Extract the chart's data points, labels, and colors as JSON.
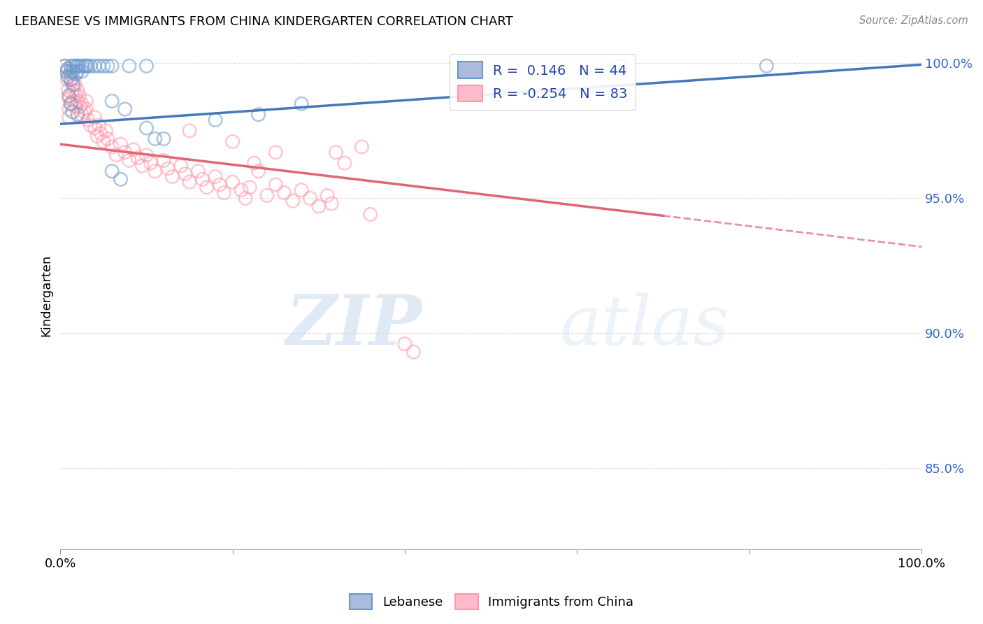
{
  "title": "LEBANESE VS IMMIGRANTS FROM CHINA KINDERGARTEN CORRELATION CHART",
  "source": "Source: ZipAtlas.com",
  "ylabel": "Kindergarten",
  "xlim": [
    0.0,
    1.0
  ],
  "ylim": [
    0.82,
    1.008
  ],
  "ytick_values": [
    0.85,
    0.9,
    0.95,
    1.0
  ],
  "xtick_values": [
    0.0,
    0.2,
    0.4,
    0.6,
    0.8,
    1.0
  ],
  "legend_blue": "R =  0.146   N = 44",
  "legend_pink": "R = -0.254   N = 83",
  "blue_line": {
    "x0": 0.0,
    "y0": 0.9775,
    "x1": 1.0,
    "y1": 0.9995
  },
  "pink_line_solid": {
    "x0": 0.0,
    "y0": 0.97,
    "x1": 0.7,
    "y1": 0.9435
  },
  "pink_line_dash": {
    "x0": 0.7,
    "y0": 0.9435,
    "x1": 1.0,
    "y1": 0.932
  },
  "blue_scatter": [
    [
      0.005,
      0.999
    ],
    [
      0.007,
      0.997
    ],
    [
      0.009,
      0.995
    ],
    [
      0.009,
      0.998
    ],
    [
      0.012,
      0.999
    ],
    [
      0.012,
      0.997
    ],
    [
      0.012,
      0.994
    ],
    [
      0.015,
      0.999
    ],
    [
      0.015,
      0.997
    ],
    [
      0.015,
      0.992
    ],
    [
      0.018,
      0.999
    ],
    [
      0.018,
      0.996
    ],
    [
      0.02,
      0.999
    ],
    [
      0.02,
      0.997
    ],
    [
      0.022,
      0.999
    ],
    [
      0.025,
      0.999
    ],
    [
      0.025,
      0.997
    ],
    [
      0.028,
      0.999
    ],
    [
      0.03,
      0.999
    ],
    [
      0.032,
      0.999
    ],
    [
      0.035,
      0.999
    ],
    [
      0.04,
      0.999
    ],
    [
      0.045,
      0.999
    ],
    [
      0.05,
      0.999
    ],
    [
      0.055,
      0.999
    ],
    [
      0.06,
      0.999
    ],
    [
      0.08,
      0.999
    ],
    [
      0.1,
      0.999
    ],
    [
      0.06,
      0.986
    ],
    [
      0.075,
      0.983
    ],
    [
      0.1,
      0.976
    ],
    [
      0.12,
      0.972
    ],
    [
      0.06,
      0.96
    ],
    [
      0.07,
      0.957
    ],
    [
      0.11,
      0.972
    ],
    [
      0.18,
      0.979
    ],
    [
      0.23,
      0.981
    ],
    [
      0.28,
      0.985
    ],
    [
      0.65,
      0.999
    ],
    [
      0.82,
      0.999
    ],
    [
      0.01,
      0.988
    ],
    [
      0.012,
      0.985
    ],
    [
      0.014,
      0.982
    ],
    [
      0.02,
      0.981
    ]
  ],
  "pink_scatter": [
    [
      0.005,
      0.999
    ],
    [
      0.007,
      0.997
    ],
    [
      0.008,
      0.994
    ],
    [
      0.009,
      0.99
    ],
    [
      0.01,
      0.987
    ],
    [
      0.01,
      0.983
    ],
    [
      0.01,
      0.98
    ],
    [
      0.012,
      0.996
    ],
    [
      0.013,
      0.993
    ],
    [
      0.013,
      0.989
    ],
    [
      0.013,
      0.985
    ],
    [
      0.015,
      0.994
    ],
    [
      0.015,
      0.99
    ],
    [
      0.015,
      0.986
    ],
    [
      0.017,
      0.992
    ],
    [
      0.018,
      0.988
    ],
    [
      0.018,
      0.984
    ],
    [
      0.02,
      0.99
    ],
    [
      0.02,
      0.986
    ],
    [
      0.022,
      0.988
    ],
    [
      0.023,
      0.984
    ],
    [
      0.025,
      0.985
    ],
    [
      0.025,
      0.981
    ],
    [
      0.028,
      0.982
    ],
    [
      0.03,
      0.986
    ],
    [
      0.03,
      0.983
    ],
    [
      0.032,
      0.979
    ],
    [
      0.035,
      0.977
    ],
    [
      0.04,
      0.98
    ],
    [
      0.04,
      0.976
    ],
    [
      0.043,
      0.973
    ],
    [
      0.045,
      0.977
    ],
    [
      0.047,
      0.974
    ],
    [
      0.05,
      0.971
    ],
    [
      0.053,
      0.975
    ],
    [
      0.055,
      0.972
    ],
    [
      0.06,
      0.969
    ],
    [
      0.065,
      0.966
    ],
    [
      0.07,
      0.97
    ],
    [
      0.075,
      0.967
    ],
    [
      0.08,
      0.964
    ],
    [
      0.085,
      0.968
    ],
    [
      0.09,
      0.965
    ],
    [
      0.095,
      0.962
    ],
    [
      0.1,
      0.966
    ],
    [
      0.105,
      0.963
    ],
    [
      0.11,
      0.96
    ],
    [
      0.12,
      0.964
    ],
    [
      0.125,
      0.961
    ],
    [
      0.13,
      0.958
    ],
    [
      0.14,
      0.962
    ],
    [
      0.145,
      0.959
    ],
    [
      0.15,
      0.956
    ],
    [
      0.16,
      0.96
    ],
    [
      0.165,
      0.957
    ],
    [
      0.17,
      0.954
    ],
    [
      0.18,
      0.958
    ],
    [
      0.185,
      0.955
    ],
    [
      0.19,
      0.952
    ],
    [
      0.2,
      0.956
    ],
    [
      0.21,
      0.953
    ],
    [
      0.215,
      0.95
    ],
    [
      0.22,
      0.954
    ],
    [
      0.225,
      0.963
    ],
    [
      0.23,
      0.96
    ],
    [
      0.24,
      0.951
    ],
    [
      0.25,
      0.955
    ],
    [
      0.26,
      0.952
    ],
    [
      0.27,
      0.949
    ],
    [
      0.28,
      0.953
    ],
    [
      0.29,
      0.95
    ],
    [
      0.3,
      0.947
    ],
    [
      0.31,
      0.951
    ],
    [
      0.315,
      0.948
    ],
    [
      0.32,
      0.967
    ],
    [
      0.33,
      0.963
    ],
    [
      0.35,
      0.969
    ],
    [
      0.36,
      0.944
    ],
    [
      0.4,
      0.896
    ],
    [
      0.41,
      0.893
    ],
    [
      0.15,
      0.975
    ],
    [
      0.2,
      0.971
    ],
    [
      0.25,
      0.967
    ]
  ],
  "blue_scatter_color": "#6699cc",
  "pink_scatter_color": "#ff99aa",
  "blue_line_color": "#4477bb",
  "pink_line_color": "#dd6677",
  "watermark_zip": "ZIP",
  "watermark_atlas": "atlas",
  "background_color": "#ffffff",
  "grid_color": "#dddddd"
}
